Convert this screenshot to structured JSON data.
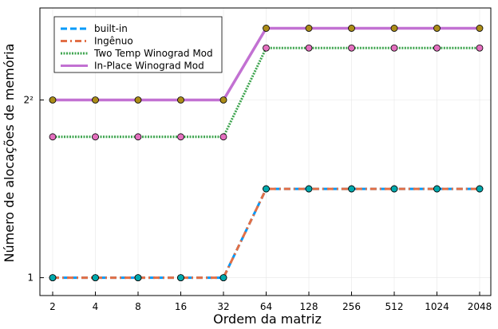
{
  "chart_data": {
    "type": "line",
    "xlabel": "Ordem da matriz",
    "ylabel": "Número de alocações de memória",
    "x_scale": "log2",
    "y_scale": "log2",
    "ylim": [
      0.87,
      8.2
    ],
    "x": [
      2,
      4,
      8,
      16,
      32,
      64,
      128,
      256,
      512,
      1024,
      2048
    ],
    "x_ticks": [
      "2",
      "4",
      "8",
      "16",
      "32",
      "64",
      "128",
      "256",
      "512",
      "1024",
      "2048"
    ],
    "y_ticks": [
      {
        "value": 1,
        "label": "1"
      },
      {
        "value": 4,
        "label": "2²"
      }
    ],
    "grid": true,
    "legend_position": "top-left",
    "series": [
      {
        "name": "built-in",
        "color": "#009AFA",
        "style": "dash",
        "marker_color": "#00A9AD",
        "values": [
          1,
          1,
          1,
          1,
          1,
          2,
          2,
          2,
          2,
          2,
          2
        ]
      },
      {
        "name": "Ingênuo",
        "color": "#E26F46",
        "style": "dashdot",
        "marker_color": "#00A9AD",
        "values": [
          1,
          1,
          1,
          1,
          1,
          2,
          2,
          2,
          2,
          2,
          2
        ]
      },
      {
        "name": "Two Temp Winograd Mod",
        "color": "#3DA44E",
        "style": "dot",
        "marker_color": "#E36FBE",
        "values": [
          3,
          3,
          3,
          3,
          3,
          6,
          6,
          6,
          6,
          6,
          6
        ]
      },
      {
        "name": "In-Place Winograd Mod",
        "color": "#C271D2",
        "style": "solid",
        "marker_color": "#AC8D18",
        "values": [
          4,
          4,
          4,
          4,
          4,
          7,
          7,
          7,
          7,
          7,
          7
        ]
      }
    ]
  }
}
